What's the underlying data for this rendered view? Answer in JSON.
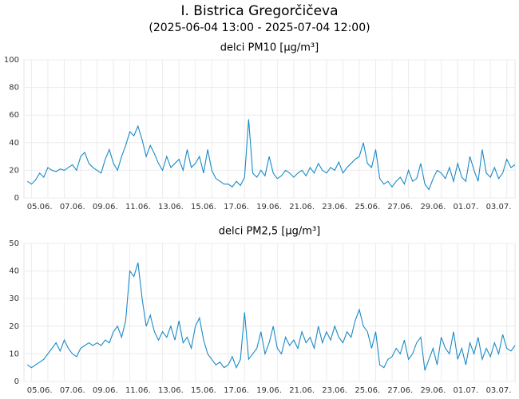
{
  "header": {
    "title": "I. Bistrica Gregorčičeva",
    "subtitle": "(2025-06-04 13:00 - 2025-07-04 12:00)"
  },
  "chart_data": [
    {
      "type": "line",
      "title": "delci PM10 [µg/m³]",
      "color": "#1a8ac6",
      "grid": true,
      "ylim": [
        0,
        100
      ],
      "yticks": [
        0,
        20,
        40,
        60,
        80,
        100
      ],
      "categories": [
        null,
        null,
        null,
        "05.06.",
        null,
        null,
        null,
        null,
        null,
        null,
        null,
        "07.06.",
        null,
        null,
        null,
        null,
        null,
        null,
        null,
        "09.06.",
        null,
        null,
        null,
        null,
        null,
        null,
        null,
        "11.06.",
        null,
        null,
        null,
        null,
        null,
        null,
        null,
        "13.06.",
        null,
        null,
        null,
        null,
        null,
        null,
        null,
        "15.06.",
        null,
        null,
        null,
        null,
        null,
        null,
        null,
        "17.06.",
        null,
        null,
        null,
        null,
        null,
        null,
        null,
        "19.06.",
        null,
        null,
        null,
        null,
        null,
        null,
        null,
        "21.06.",
        null,
        null,
        null,
        null,
        null,
        null,
        null,
        "23.06.",
        null,
        null,
        null,
        null,
        null,
        null,
        null,
        "25.06.",
        null,
        null,
        null,
        null,
        null,
        null,
        null,
        "27.06.",
        null,
        null,
        null,
        null,
        null,
        null,
        null,
        "29.06.",
        null,
        null,
        null,
        null,
        null,
        null,
        null,
        "01.07.",
        null,
        null,
        null,
        null,
        null,
        null,
        null,
        "03.07.",
        null,
        null,
        null,
        null
      ],
      "values": [
        12,
        10,
        13,
        18,
        15,
        22,
        20,
        19,
        21,
        20,
        22,
        24,
        20,
        30,
        33,
        25,
        22,
        20,
        18,
        28,
        35,
        25,
        20,
        30,
        38,
        48,
        45,
        52,
        42,
        30,
        38,
        32,
        25,
        20,
        30,
        22,
        25,
        28,
        20,
        35,
        22,
        25,
        30,
        18,
        35,
        20,
        14,
        12,
        10,
        10,
        8,
        12,
        9,
        15,
        57,
        18,
        15,
        20,
        16,
        30,
        18,
        14,
        16,
        20,
        18,
        15,
        18,
        20,
        16,
        22,
        18,
        25,
        20,
        18,
        22,
        20,
        26,
        18,
        22,
        25,
        28,
        30,
        40,
        25,
        22,
        35,
        14,
        10,
        12,
        8,
        12,
        15,
        10,
        20,
        12,
        14,
        25,
        10,
        6,
        14,
        20,
        18,
        14,
        22,
        12,
        25,
        15,
        12,
        30,
        20,
        12,
        35,
        18,
        15,
        22,
        14,
        18,
        28,
        22,
        24
      ]
    },
    {
      "type": "line",
      "title": "delci PM2,5 [µg/m³]",
      "color": "#1a8ac6",
      "grid": true,
      "ylim": [
        0,
        50
      ],
      "yticks": [
        0,
        10,
        20,
        30,
        40,
        50
      ],
      "categories": [
        null,
        null,
        null,
        "05.06.",
        null,
        null,
        null,
        null,
        null,
        null,
        null,
        "07.06.",
        null,
        null,
        null,
        null,
        null,
        null,
        null,
        "09.06.",
        null,
        null,
        null,
        null,
        null,
        null,
        null,
        "11.06.",
        null,
        null,
        null,
        null,
        null,
        null,
        null,
        "13.06.",
        null,
        null,
        null,
        null,
        null,
        null,
        null,
        "15.06.",
        null,
        null,
        null,
        null,
        null,
        null,
        null,
        "17.06.",
        null,
        null,
        null,
        null,
        null,
        null,
        null,
        "19.06.",
        null,
        null,
        null,
        null,
        null,
        null,
        null,
        "21.06.",
        null,
        null,
        null,
        null,
        null,
        null,
        null,
        "23.06.",
        null,
        null,
        null,
        null,
        null,
        null,
        null,
        "25.06.",
        null,
        null,
        null,
        null,
        null,
        null,
        null,
        "27.06.",
        null,
        null,
        null,
        null,
        null,
        null,
        null,
        "29.06.",
        null,
        null,
        null,
        null,
        null,
        null,
        null,
        "01.07.",
        null,
        null,
        null,
        null,
        null,
        null,
        null,
        "03.07.",
        null,
        null,
        null,
        null
      ],
      "values": [
        6,
        5,
        6,
        7,
        8,
        10,
        12,
        14,
        11,
        15,
        12,
        10,
        9,
        12,
        13,
        14,
        13,
        14,
        13,
        15,
        14,
        18,
        20,
        16,
        22,
        40,
        38,
        43,
        30,
        20,
        24,
        18,
        15,
        18,
        16,
        20,
        15,
        22,
        14,
        16,
        12,
        20,
        23,
        15,
        10,
        8,
        6,
        7,
        5,
        6,
        9,
        5,
        8,
        25,
        8,
        10,
        12,
        18,
        10,
        14,
        20,
        12,
        10,
        16,
        13,
        15,
        12,
        18,
        14,
        16,
        12,
        20,
        14,
        18,
        15,
        20,
        16,
        14,
        18,
        16,
        22,
        26,
        20,
        18,
        12,
        18,
        6,
        5,
        8,
        9,
        12,
        10,
        15,
        8,
        10,
        14,
        16,
        4,
        8,
        12,
        6,
        16,
        12,
        10,
        18,
        8,
        12,
        6,
        14,
        10,
        16,
        8,
        12,
        9,
        14,
        10,
        17,
        12,
        11,
        13
      ]
    }
  ]
}
